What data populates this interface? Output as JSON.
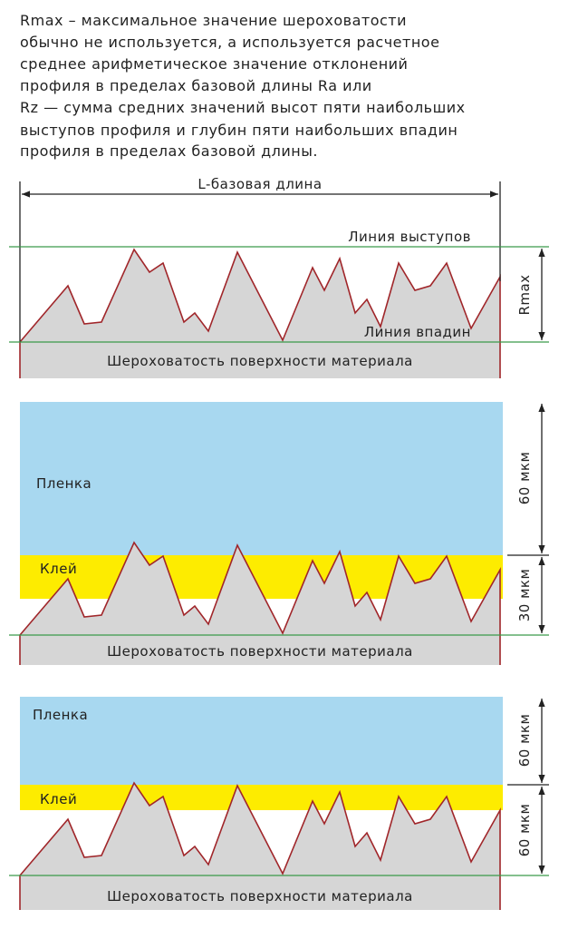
{
  "description": [
    "Rmax – максимальное значение шероховатости",
    "обычно не используется, а используется расчетное",
    "среднее арифметическое значение отклонений",
    "профиля в пределах базовой длины Ra или",
    "Rz — сумма средних значений высот пяти наибольших",
    "выступов профиля и глубин пяти наибольших впадин",
    "профиля в пределах базовой длины."
  ],
  "diagram1": {
    "length_label": "L-базовая длина",
    "peaks_line": "Линия выступов",
    "valleys_line": "Линия впадин",
    "height_label": "Rmax",
    "surface": "Шероховатость поверхности материала"
  },
  "diagram2": {
    "film": "Пленка",
    "glue": "Клей",
    "film_thickness": "60 мкм",
    "glue_thickness": "30 мкм",
    "surface": "Шероховатость поверхности материала"
  },
  "diagram3": {
    "film": "Пленка",
    "glue": "Клей",
    "film_thickness": "60 мкм",
    "glue_thickness": "60 мкм",
    "surface": "Шероховатость поверхности материала"
  }
}
